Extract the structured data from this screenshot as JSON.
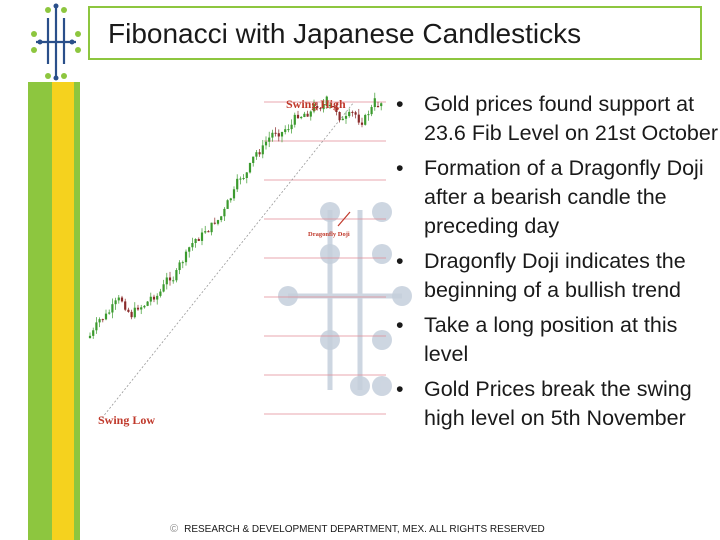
{
  "slide": {
    "title": "Fibonacci with Japanese Candlesticks",
    "footer_symbol": "©",
    "footer": "RESEARCH & DEVELOPMENT DEPARTMENT, MEX. ALL RIGHTS RESERVED",
    "bullet_glyph": "•",
    "bullets": [
      "Gold prices found support at 23.6 Fib Level on 21st October",
      "Formation of a Dragonfly Doji after a bearish candle the preceding day",
      "Dragonfly Doji indicates the beginning of a bullish trend",
      "Take a long position at this level",
      "Gold Prices break the swing high level on 5th November"
    ]
  },
  "colors": {
    "green": "#8dc63f",
    "yellow": "#f5d21e",
    "logo_blue": "#2a4f8a",
    "candle_up": "#3b9a2e",
    "candle_down": "#8a2b2b",
    "fib_line": "#e08a95",
    "annotation_red": "#c0392b",
    "decor_circle": "#c5cfdc"
  },
  "chart_data": {
    "type": "candlestick",
    "annotations": [
      "Swing High",
      "Swing Low",
      "Dragonfly Doji"
    ],
    "fib_levels": 9,
    "grid": false
  }
}
